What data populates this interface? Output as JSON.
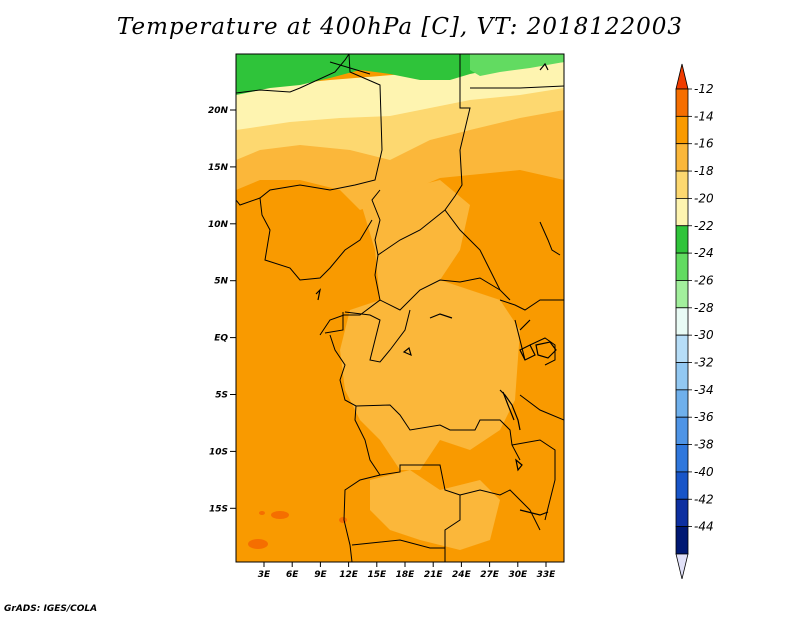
{
  "title": "Temperature at 400hPa [C], VT: 2018122003",
  "credit": "GrADS: IGES/COLA",
  "map": {
    "lat_ticks": [
      "20N",
      "15N",
      "10N",
      "5N",
      "EQ",
      "5S",
      "10S",
      "15S"
    ],
    "lon_ticks": [
      "3E",
      "6E",
      "9E",
      "12E",
      "15E",
      "18E",
      "21E",
      "24E",
      "27E",
      "30E",
      "33E"
    ]
  },
  "colorbar": {
    "labels": [
      "-12",
      "-14",
      "-16",
      "-18",
      "-20",
      "-22",
      "-24",
      "-26",
      "-28",
      "-30",
      "-32",
      "-34",
      "-36",
      "-38",
      "-40",
      "-42",
      "-44"
    ],
    "colors": [
      "#f03c00",
      "#f56e00",
      "#f99a00",
      "#fbb73a",
      "#fdd870",
      "#fef4b0",
      "#2fc43a",
      "#62db61",
      "#a2ef9c",
      "#e9fbf5",
      "#b6ddf7",
      "#92c8f2",
      "#6fb0ec",
      "#4e94e6",
      "#2f77dc",
      "#1855c8",
      "#0d2fa0",
      "#001873",
      "#e1e1f8"
    ]
  },
  "field_colors": {
    "dark_orange": "#f99a00",
    "orange": "#fbb73a",
    "light": "#fdd870",
    "pale": "#fef4b0",
    "green": "#2fc43a",
    "light_green": "#62db61",
    "red_orange": "#f56e00"
  }
}
